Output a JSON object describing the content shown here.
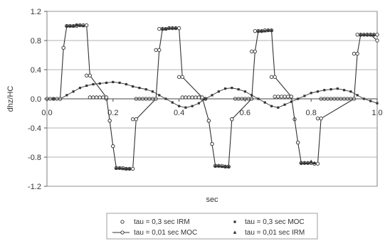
{
  "chart_data": {
    "type": "line",
    "title": "",
    "xlabel": "sec",
    "ylabel": "dhz/HC",
    "xlim": [
      0.0,
      1.0
    ],
    "ylim": [
      -1.2,
      1.2
    ],
    "x_ticks": [
      0.0,
      0.2,
      0.4,
      0.6,
      0.8,
      1.0
    ],
    "x_tick_labels": [
      "0.0",
      "0.2",
      "0.4",
      "0.6",
      "0.8",
      "1.0"
    ],
    "y_ticks": [
      -1.2,
      -0.8,
      -0.4,
      0.0,
      0.4,
      0.8,
      1.2
    ],
    "y_tick_labels": [
      "-1.2",
      "-0.8",
      "-0.4",
      "0.0",
      "0.4",
      "0.8",
      "1.2"
    ],
    "grid": "horizontal",
    "legend_position": "bottom",
    "series": [
      {
        "name": "tau = 0,3 sec IRM",
        "marker": "circle-open",
        "line": false,
        "x": [
          0.0,
          0.01,
          0.02,
          0.03,
          0.04,
          0.05,
          0.06,
          0.07,
          0.08,
          0.09,
          0.1,
          0.11,
          0.12,
          0.13,
          0.14,
          0.15,
          0.16,
          0.17,
          0.18,
          0.19,
          0.2,
          0.21,
          0.22,
          0.23,
          0.24,
          0.25,
          0.26,
          0.27,
          0.28,
          0.29,
          0.3,
          0.31,
          0.32,
          0.33,
          0.34,
          0.35,
          0.36,
          0.37,
          0.38,
          0.39,
          0.4,
          0.41,
          0.42,
          0.43,
          0.44,
          0.45,
          0.46,
          0.47,
          0.48,
          0.49,
          0.5,
          0.51,
          0.52,
          0.53,
          0.54,
          0.55,
          0.56,
          0.57,
          0.58,
          0.59,
          0.6,
          0.61,
          0.62,
          0.63,
          0.64,
          0.65,
          0.66,
          0.67,
          0.68,
          0.69,
          0.7,
          0.71,
          0.72,
          0.73,
          0.74,
          0.75,
          0.76,
          0.77,
          0.78,
          0.79,
          0.8,
          0.81,
          0.82,
          0.83,
          0.84,
          0.85,
          0.86,
          0.87,
          0.88,
          0.89,
          0.9,
          0.91,
          0.92,
          0.93,
          0.94,
          0.95,
          0.96,
          0.97,
          0.98,
          0.99,
          1.0
        ],
        "y": [
          0.0,
          0.0,
          0.0,
          0.0,
          0.0,
          0.7,
          1.0,
          1.0,
          1.0,
          1.01,
          1.01,
          1.01,
          0.32,
          0.02,
          0.02,
          0.02,
          0.02,
          0.02,
          0.0,
          -0.3,
          -0.65,
          -0.95,
          -0.95,
          -0.95,
          -0.96,
          -0.96,
          -0.28,
          0.0,
          0.0,
          0.0,
          0.0,
          0.0,
          0.0,
          0.67,
          0.96,
          0.96,
          0.96,
          0.97,
          0.97,
          0.97,
          0.3,
          0.02,
          0.02,
          0.02,
          0.02,
          0.02,
          0.02,
          0.0,
          0.0,
          -0.3,
          -0.62,
          -0.92,
          -0.92,
          -0.92,
          -0.93,
          -0.93,
          -0.28,
          0.0,
          0.0,
          0.0,
          0.0,
          0.0,
          0.65,
          0.93,
          0.93,
          0.93,
          0.94,
          0.94,
          0.3,
          0.03,
          0.03,
          0.03,
          0.03,
          0.03,
          0.03,
          -0.28,
          -0.6,
          -0.88,
          -0.88,
          -0.88,
          -0.88,
          -0.89,
          -0.27,
          0.0,
          0.0,
          0.0,
          0.0,
          0.0,
          0.0,
          0.0,
          0.0,
          0.0,
          0.0,
          0.62,
          0.88,
          0.88,
          0.88,
          0.88,
          0.88,
          0.88,
          0.88
        ]
      },
      {
        "name": "tau = 0,3 sec MOC",
        "marker": "square-filled",
        "line": true,
        "x": [
          0.0,
          0.02,
          0.04,
          0.06,
          0.08,
          0.1,
          0.12,
          0.14,
          0.16,
          0.18,
          0.2,
          0.22,
          0.24,
          0.26,
          0.28,
          0.3,
          0.32,
          0.34,
          0.36,
          0.38,
          0.4,
          0.42,
          0.44,
          0.46,
          0.48,
          0.5,
          0.52,
          0.54,
          0.56,
          0.58,
          0.6,
          0.62,
          0.64,
          0.66,
          0.68,
          0.7,
          0.72,
          0.74,
          0.76,
          0.78,
          0.8,
          0.82,
          0.84,
          0.86,
          0.88,
          0.9,
          0.92,
          0.94,
          0.96,
          0.98,
          1.0
        ],
        "y": [
          0.0,
          0.0,
          0.0,
          0.05,
          0.1,
          0.15,
          0.18,
          0.2,
          0.21,
          0.22,
          0.23,
          0.22,
          0.2,
          0.17,
          0.15,
          0.13,
          0.1,
          0.05,
          0.0,
          -0.05,
          -0.1,
          -0.12,
          -0.1,
          -0.06,
          0.0,
          0.05,
          0.1,
          0.14,
          0.15,
          0.13,
          0.1,
          0.05,
          0.0,
          -0.05,
          -0.1,
          -0.12,
          -0.08,
          -0.04,
          0.0,
          0.04,
          0.08,
          0.1,
          0.12,
          0.13,
          0.14,
          0.12,
          0.1,
          0.05,
          0.0,
          -0.03,
          -0.06
        ]
      },
      {
        "name": "tau = 0,01 sec MOC",
        "marker": "circle-open",
        "line": true,
        "x": [
          0.0,
          0.04,
          0.05,
          0.06,
          0.09,
          0.12,
          0.13,
          0.18,
          0.19,
          0.2,
          0.21,
          0.26,
          0.27,
          0.33,
          0.34,
          0.35,
          0.4,
          0.41,
          0.47,
          0.49,
          0.5,
          0.51,
          0.55,
          0.56,
          0.62,
          0.63,
          0.64,
          0.68,
          0.69,
          0.74,
          0.76,
          0.77,
          0.82,
          0.83,
          0.93,
          0.94,
          0.95,
          0.97,
          0.98,
          1.0
        ],
        "y": [
          0.0,
          0.0,
          0.7,
          1.0,
          1.0,
          1.01,
          0.32,
          0.02,
          -0.3,
          -0.65,
          -0.95,
          -0.96,
          -0.28,
          0.0,
          0.67,
          0.96,
          0.97,
          0.3,
          0.02,
          -0.3,
          -0.62,
          -0.92,
          -0.93,
          -0.28,
          0.0,
          0.65,
          0.93,
          0.94,
          0.3,
          0.03,
          -0.6,
          -0.88,
          -0.89,
          -0.27,
          0.0,
          0.62,
          0.88,
          0.88,
          0.88,
          0.8
        ]
      },
      {
        "name": "tau = 0,01 sec IRM",
        "marker": "triangle-filled",
        "line": false,
        "x": [
          0.06,
          0.07,
          0.08,
          0.09,
          0.1,
          0.11,
          0.21,
          0.22,
          0.23,
          0.24,
          0.25,
          0.35,
          0.36,
          0.37,
          0.38,
          0.39,
          0.51,
          0.52,
          0.53,
          0.54,
          0.55,
          0.64,
          0.65,
          0.66,
          0.67,
          0.68,
          0.77,
          0.78,
          0.79,
          0.8,
          0.81,
          0.95,
          0.96,
          0.97,
          0.98,
          0.99
        ],
        "y": [
          1.0,
          1.0,
          1.0,
          1.01,
          1.01,
          1.0,
          -0.95,
          -0.95,
          -0.96,
          -0.96,
          -0.96,
          0.96,
          0.96,
          0.97,
          0.97,
          0.97,
          -0.92,
          -0.92,
          -0.93,
          -0.93,
          -0.93,
          0.93,
          0.93,
          0.93,
          0.94,
          0.94,
          -0.88,
          -0.88,
          -0.88,
          -0.86,
          -0.88,
          0.88,
          0.88,
          0.88,
          0.88,
          0.88
        ]
      }
    ]
  }
}
